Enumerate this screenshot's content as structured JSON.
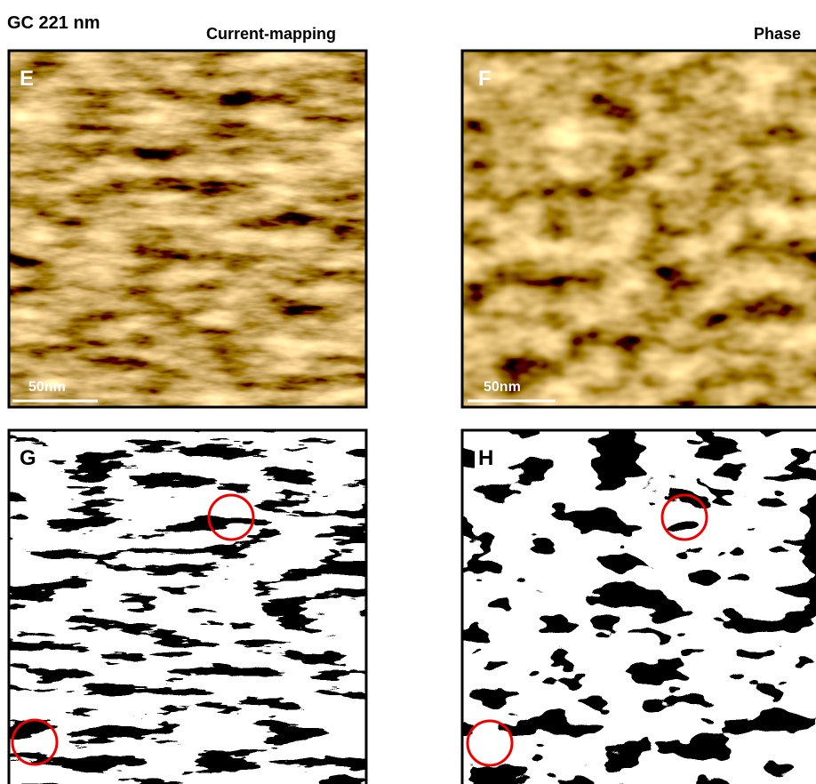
{
  "header": {
    "title": "GC 221 nm"
  },
  "columns": [
    "Current-mapping",
    "Phase"
  ],
  "panels": [
    {
      "label": "E",
      "scale_bar": "50nm"
    },
    {
      "label": "F",
      "scale_bar": "50nm"
    },
    {
      "label": "G"
    },
    {
      "label": "H"
    }
  ]
}
